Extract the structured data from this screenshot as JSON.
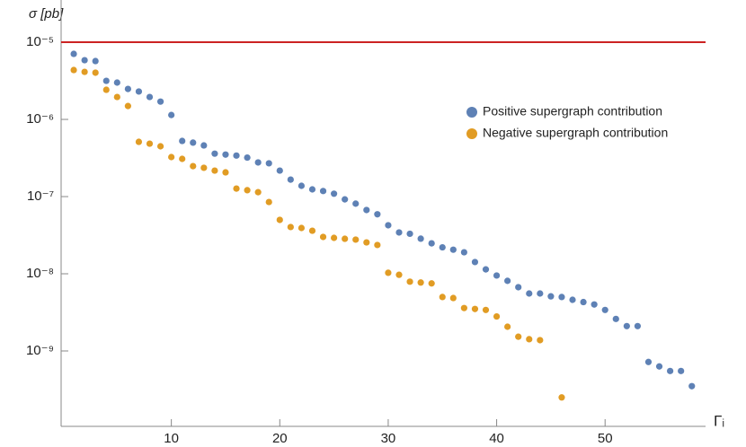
{
  "chart_data": {
    "type": "scatter",
    "y_label": "σ [pb]",
    "x_label": "Γᵢ",
    "log_y": true,
    "xlim": [
      0,
      59.1
    ],
    "ylim": [
      1e-10,
      3e-05
    ],
    "xticks": [
      10,
      20,
      30,
      40,
      50
    ],
    "yticks": [
      {
        "value": 1e-09,
        "label": "10⁻⁹"
      },
      {
        "value": 1e-08,
        "label": "10⁻⁸"
      },
      {
        "value": 1e-07,
        "label": "10⁻⁷"
      },
      {
        "value": 1e-06,
        "label": "10⁻⁶"
      },
      {
        "value": 1e-05,
        "label": "10⁻⁵"
      }
    ],
    "reference_line": {
      "value": 1e-05,
      "color": "#cc2222"
    },
    "legend_position": "upper right",
    "series": [
      {
        "name": "Positive supergraph contribution",
        "color": "#5e81b5",
        "x": [
          1,
          2,
          3,
          4,
          5,
          6,
          7,
          8,
          9,
          10,
          11,
          12,
          13,
          14,
          15,
          16,
          17,
          18,
          19,
          20,
          21,
          22,
          23,
          24,
          25,
          26,
          27,
          28,
          29,
          30,
          31,
          32,
          33,
          34,
          35,
          36,
          37,
          38,
          39,
          40,
          41,
          42,
          43,
          44,
          45,
          46,
          47,
          48,
          49,
          50,
          51,
          52,
          53,
          54,
          55,
          56,
          57,
          58
        ],
        "values": [
          7.06e-06,
          5.85e-06,
          5.7e-06,
          3.16e-06,
          3e-06,
          2.48e-06,
          2.3e-06,
          1.95e-06,
          1.7e-06,
          1.14e-06,
          5.26e-07,
          5e-07,
          4.6e-07,
          3.6e-07,
          3.5e-07,
          3.4e-07,
          3.2e-07,
          2.77e-07,
          2.7e-07,
          2.17e-07,
          1.66e-07,
          1.38e-07,
          1.24e-07,
          1.18e-07,
          1.09e-07,
          9.2e-08,
          8.1e-08,
          6.7e-08,
          5.9e-08,
          4.25e-08,
          3.43e-08,
          3.3e-08,
          2.85e-08,
          2.48e-08,
          2.2e-08,
          2.05e-08,
          1.9e-08,
          1.42e-08,
          1.14e-08,
          9.5e-09,
          8.1e-09,
          6.7e-09,
          5.55e-09,
          5.55e-09,
          5.1e-09,
          5e-09,
          4.6e-09,
          4.3e-09,
          4e-09,
          3.4e-09,
          2.6e-09,
          2.1e-09,
          2.1e-09,
          7.2e-10,
          6.3e-10,
          5.5e-10,
          5.5e-10,
          3.5e-10
        ]
      },
      {
        "name": "Negative supergraph contribution",
        "color": "#e19c24",
        "x": [
          1,
          2,
          3,
          4,
          5,
          6,
          7,
          8,
          9,
          10,
          11,
          12,
          13,
          14,
          15,
          16,
          17,
          18,
          19,
          20,
          21,
          22,
          23,
          24,
          25,
          26,
          27,
          28,
          29,
          30,
          31,
          32,
          33,
          34,
          35,
          36,
          37,
          38,
          39,
          40,
          41,
          42,
          43,
          44,
          45,
          46
        ],
        "values": [
          4.36e-06,
          4.13e-06,
          4.03e-06,
          2.42e-06,
          1.95e-06,
          1.49e-06,
          5.12e-07,
          4.85e-07,
          4.48e-07,
          3.25e-07,
          3.08e-07,
          2.48e-07,
          2.36e-07,
          2.17e-07,
          2.06e-07,
          1.27e-07,
          1.21e-07,
          1.14e-07,
          8.5e-08,
          4.99e-08,
          4.03e-08,
          3.92e-08,
          3.61e-08,
          3e-08,
          2.92e-08,
          2.84e-08,
          2.77e-08,
          2.55e-08,
          2.36e-08,
          1.03e-08,
          9.7e-09,
          7.9e-09,
          7.7e-09,
          7.5e-09,
          5e-09,
          4.85e-09,
          3.6e-09,
          3.5e-09,
          3.4e-09,
          2.8e-09,
          2.06e-09,
          1.53e-09,
          1.42e-09,
          1.38e-09,
          null,
          2.5e-10
        ]
      }
    ]
  }
}
